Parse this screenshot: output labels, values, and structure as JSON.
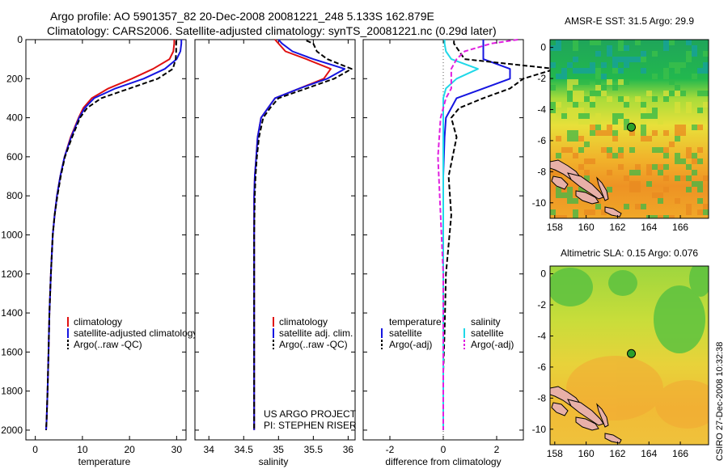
{
  "header": {
    "title_line1": "Argo profile: AO 5901357_82 20-Dec-2008 20081221_248 5.133S 162.879E",
    "title_line2": "Climatology: CARS2006. Satellite-adjusted climatology: synTS_20081221.nc (0.29d later)"
  },
  "footer": {
    "credit1": "US ARGO PROJECT",
    "credit2": "PI: STEPHEN RISER",
    "timestamp": "CSIRO 27-Dec-2008 10:32:38"
  },
  "colors": {
    "climatology": "#e01010",
    "satellite": "#1515e0",
    "argo": "#000000",
    "sal_satellite": "#20d8e8",
    "sal_argo": "#e020e0",
    "land": "#e8b0a8",
    "float_marker": "#2aa02a"
  },
  "chart_data": [
    {
      "id": "temperature",
      "type": "line",
      "xlabel": "temperature",
      "ylabel": "",
      "xlim": [
        -2,
        32
      ],
      "ylim": [
        2050,
        0
      ],
      "y_reversed": true,
      "xticks": [
        "0",
        "10",
        "20",
        "30"
      ],
      "yticks": [
        "0",
        "200",
        "400",
        "600",
        "800",
        "1000",
        "1200",
        "1400",
        "1600",
        "1800",
        "2000"
      ],
      "legend": {
        "placement": "lower-center",
        "entries": [
          "climatology",
          "satellite-adjusted climatology",
          "Argo(..raw -QC)"
        ]
      },
      "series": [
        {
          "name": "climatology",
          "color": "#e01010",
          "dash": "",
          "x": [
            29.5,
            29.5,
            29.3,
            28.5,
            25.0,
            20.5,
            15.5,
            12.0,
            10.2,
            9.2,
            7.5,
            6.2,
            5.3,
            4.6,
            4.1,
            3.7,
            3.3,
            3.0,
            2.8,
            2.6,
            2.4,
            2.3
          ],
          "y": [
            0,
            20,
            60,
            100,
            150,
            200,
            250,
            300,
            350,
            400,
            500,
            600,
            700,
            800,
            900,
            1000,
            1200,
            1400,
            1600,
            1800,
            1950,
            2000
          ]
        },
        {
          "name": "satellite-adjusted climatology",
          "color": "#1515e0",
          "dash": "",
          "x": [
            31.0,
            31.0,
            30.8,
            30.0,
            27.5,
            23.0,
            17.0,
            12.5,
            10.5,
            9.3,
            7.6,
            6.2,
            5.3,
            4.6,
            4.1,
            3.7,
            3.3,
            3.0,
            2.8,
            2.6,
            2.4,
            2.3
          ],
          "y": [
            0,
            20,
            60,
            100,
            150,
            200,
            250,
            300,
            350,
            400,
            500,
            600,
            700,
            800,
            900,
            1000,
            1200,
            1400,
            1600,
            1800,
            1950,
            2000
          ]
        },
        {
          "name": "Argo(..raw -QC)",
          "color": "#000000",
          "dash": "6,3",
          "x": [
            29.9,
            29.9,
            29.9,
            29.8,
            29.2,
            26.0,
            20.0,
            14.0,
            11.0,
            9.5,
            7.8,
            6.3,
            5.4,
            4.7,
            4.1,
            3.7,
            3.3,
            3.0,
            2.8,
            2.6,
            2.4,
            2.3
          ],
          "y": [
            5,
            20,
            60,
            100,
            150,
            200,
            250,
            300,
            350,
            400,
            500,
            600,
            700,
            800,
            900,
            1000,
            1200,
            1400,
            1600,
            1800,
            1950,
            2000
          ]
        }
      ]
    },
    {
      "id": "salinity",
      "type": "line",
      "xlabel": "salinity",
      "ylabel": "",
      "xlim": [
        33.8,
        36.1
      ],
      "ylim": [
        2050,
        0
      ],
      "y_reversed": true,
      "xticks": [
        "34",
        "34.5",
        "35",
        "35.5",
        "36"
      ],
      "legend": {
        "placement": "lower-center",
        "entries": [
          "climatology",
          "satellite adj. clim.",
          "Argo(..raw -QC)"
        ]
      },
      "series": [
        {
          "name": "climatology",
          "color": "#e01010",
          "dash": "",
          "x": [
            34.95,
            35.0,
            35.1,
            35.4,
            35.75,
            35.65,
            35.3,
            34.95,
            34.85,
            34.75,
            34.7,
            34.68,
            34.66,
            34.65,
            34.65,
            34.65,
            34.65,
            34.65,
            34.65,
            34.65
          ],
          "y": [
            0,
            20,
            60,
            100,
            150,
            200,
            250,
            300,
            350,
            400,
            500,
            600,
            700,
            800,
            1000,
            1200,
            1400,
            1600,
            1800,
            2000
          ]
        },
        {
          "name": "satellite adj. clim.",
          "color": "#1515e0",
          "dash": "",
          "x": [
            35.0,
            35.05,
            35.2,
            35.5,
            35.95,
            35.7,
            35.3,
            34.95,
            34.85,
            34.75,
            34.7,
            34.68,
            34.66,
            34.65,
            34.65,
            34.65,
            34.65,
            34.65,
            34.65,
            34.65
          ],
          "y": [
            0,
            20,
            60,
            100,
            150,
            200,
            250,
            300,
            350,
            400,
            500,
            600,
            700,
            800,
            1000,
            1200,
            1400,
            1600,
            1800,
            2000
          ]
        },
        {
          "name": "Argo(..raw -QC)",
          "color": "#000000",
          "dash": "6,3",
          "x": [
            35.4,
            35.5,
            35.55,
            35.7,
            36.05,
            35.8,
            35.4,
            35.0,
            34.88,
            34.78,
            34.72,
            34.69,
            34.67,
            34.66,
            34.65,
            34.65,
            34.65,
            34.65,
            34.65,
            34.65
          ],
          "y": [
            5,
            20,
            60,
            100,
            150,
            200,
            250,
            300,
            350,
            400,
            500,
            600,
            700,
            800,
            1000,
            1200,
            1400,
            1600,
            1800,
            2000
          ]
        }
      ]
    },
    {
      "id": "difference",
      "type": "line",
      "xlabel": "difference from climatology",
      "ylabel": "",
      "xlim": [
        -3,
        3
      ],
      "ylim": [
        2050,
        0
      ],
      "y_reversed": true,
      "xticks": [
        "-2",
        "0",
        "2"
      ],
      "legend": {
        "placement": "lower-center",
        "groups": [
          {
            "heading": "temperature",
            "entries": [
              "satellite",
              "Argo(-adj)"
            ]
          },
          {
            "heading": "salinity",
            "entries": [
              "satellite",
              "Argo(-adj)"
            ]
          }
        ]
      },
      "series": [
        {
          "name": "satellite",
          "group": "temperature",
          "color": "#1515e0",
          "dash": "",
          "x": [
            1.5,
            1.5,
            1.5,
            1.5,
            2.5,
            2.5,
            1.5,
            0.5,
            0.3,
            0.1,
            0.05,
            0.0,
            0.0,
            0.0,
            0.0,
            0.0,
            0.0,
            0.0
          ],
          "y": [
            0,
            20,
            60,
            100,
            150,
            200,
            250,
            300,
            350,
            400,
            500,
            700,
            900,
            1200,
            1500,
            1700,
            1900,
            2000
          ]
        },
        {
          "name": "Argo(-adj)",
          "group": "temperature",
          "color": "#000000",
          "dash": "6,3",
          "x": [
            0.4,
            0.4,
            0.6,
            0.8,
            4.2,
            3.0,
            2.5,
            1.5,
            0.6,
            0.3,
            0.5,
            0.2,
            0.3,
            0.1,
            0.05,
            0.0,
            0.0,
            0.0
          ],
          "y": [
            5,
            20,
            60,
            100,
            150,
            200,
            250,
            300,
            350,
            400,
            500,
            700,
            900,
            1200,
            1500,
            1700,
            1900,
            2000
          ]
        },
        {
          "name": "satellite",
          "group": "salinity",
          "color": "#20d8e8",
          "dash": "",
          "x": [
            0.05,
            0.05,
            0.1,
            0.3,
            1.3,
            0.5,
            0.1,
            0.0,
            0.0,
            0.0,
            0.0,
            0.0,
            0.0,
            0.0,
            0.0,
            0.0
          ],
          "y": [
            0,
            20,
            60,
            100,
            150,
            200,
            250,
            300,
            350,
            400,
            600,
            900,
            1200,
            1600,
            1900,
            2000
          ]
        },
        {
          "name": "Argo(-adj)",
          "group": "salinity",
          "color": "#e020e0",
          "dash": "6,3",
          "x": [
            2.8,
            1.8,
            0.8,
            0.5,
            0.3,
            0.3,
            0.3,
            0.1,
            0.0,
            -0.1,
            -0.2,
            -0.1,
            0.0,
            0.0,
            0.0,
            0.0
          ],
          "y": [
            0,
            20,
            60,
            100,
            150,
            200,
            250,
            300,
            350,
            400,
            600,
            900,
            1200,
            1600,
            1900,
            2000
          ]
        }
      ]
    },
    {
      "id": "amsre",
      "type": "heatmap",
      "title": "AMSR-E SST: 31.5 Argo: 29.9",
      "xlim": [
        157.7,
        167.8
      ],
      "ylim": [
        -11,
        0.5
      ],
      "xticks": [
        "158",
        "160",
        "162",
        "164",
        "166"
      ],
      "yticks": [
        "0",
        "-2",
        "-4",
        "-6",
        "-8",
        "-10"
      ],
      "float_position": {
        "lon": 162.879,
        "lat": -5.133
      }
    },
    {
      "id": "sla",
      "type": "heatmap",
      "title": "Altimetric SLA: 0.15 Argo: 0.076",
      "xlim": [
        157.7,
        167.8
      ],
      "ylim": [
        -11,
        0.5
      ],
      "xticks": [
        "158",
        "160",
        "162",
        "164",
        "166"
      ],
      "yticks": [
        "0",
        "-2",
        "-4",
        "-6",
        "-8",
        "-10"
      ],
      "float_position": {
        "lon": 162.879,
        "lat": -5.133
      }
    }
  ]
}
